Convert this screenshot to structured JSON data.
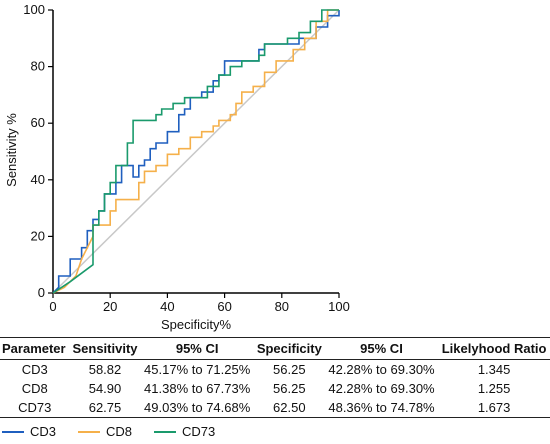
{
  "chart_data": {
    "type": "line",
    "title": "",
    "xlabel": "Specificity%",
    "ylabel": "Sensitivity %",
    "xlim": [
      0,
      100
    ],
    "ylim": [
      0,
      100
    ],
    "xticks": [
      0,
      20,
      40,
      60,
      80,
      100
    ],
    "yticks": [
      0,
      20,
      40,
      60,
      80,
      100
    ],
    "grid": false,
    "legend_placement": "bottom",
    "reference_line": {
      "points": [
        [
          0,
          0
        ],
        [
          100,
          100
        ]
      ],
      "color": "#c8c8c8"
    },
    "series": [
      {
        "name": "CD3",
        "color": "#1f5fbf",
        "points": [
          [
            0,
            0
          ],
          [
            2,
            2
          ],
          [
            2,
            6
          ],
          [
            6,
            6
          ],
          [
            6,
            12
          ],
          [
            10,
            12
          ],
          [
            10,
            16
          ],
          [
            12,
            16
          ],
          [
            12,
            22
          ],
          [
            14,
            22
          ],
          [
            14,
            26
          ],
          [
            16,
            26
          ],
          [
            16,
            29
          ],
          [
            18,
            29
          ],
          [
            18,
            35
          ],
          [
            22,
            35
          ],
          [
            22,
            39
          ],
          [
            24,
            39
          ],
          [
            24,
            45
          ],
          [
            28,
            45
          ],
          [
            28,
            41
          ],
          [
            30,
            41
          ],
          [
            30,
            45
          ],
          [
            32,
            45
          ],
          [
            32,
            47
          ],
          [
            34,
            47
          ],
          [
            34,
            51
          ],
          [
            36,
            51
          ],
          [
            36,
            53
          ],
          [
            40,
            53
          ],
          [
            40,
            57
          ],
          [
            44,
            57
          ],
          [
            44,
            63
          ],
          [
            46,
            63
          ],
          [
            46,
            65
          ],
          [
            48,
            65
          ],
          [
            48,
            69
          ],
          [
            52,
            69
          ],
          [
            52,
            71
          ],
          [
            56,
            71
          ],
          [
            56,
            75
          ],
          [
            58,
            75
          ],
          [
            58,
            77
          ],
          [
            60,
            77
          ],
          [
            60,
            82
          ],
          [
            72,
            82
          ],
          [
            72,
            86
          ],
          [
            74,
            86
          ],
          [
            74,
            88
          ],
          [
            86,
            88
          ],
          [
            86,
            90
          ],
          [
            92,
            90
          ],
          [
            92,
            94
          ],
          [
            96,
            94
          ],
          [
            96,
            98
          ],
          [
            100,
            98
          ],
          [
            100,
            100
          ]
        ]
      },
      {
        "name": "CD8",
        "color": "#f5b04a",
        "points": [
          [
            0,
            0
          ],
          [
            4,
            2
          ],
          [
            8,
            6
          ],
          [
            10,
            12
          ],
          [
            12,
            16
          ],
          [
            14,
            20
          ],
          [
            14,
            24
          ],
          [
            20,
            24
          ],
          [
            20,
            29
          ],
          [
            22,
            29
          ],
          [
            22,
            33
          ],
          [
            30,
            33
          ],
          [
            30,
            39
          ],
          [
            32,
            39
          ],
          [
            32,
            43
          ],
          [
            36,
            43
          ],
          [
            36,
            45
          ],
          [
            40,
            45
          ],
          [
            40,
            49
          ],
          [
            44,
            49
          ],
          [
            44,
            51
          ],
          [
            48,
            51
          ],
          [
            48,
            55
          ],
          [
            52,
            55
          ],
          [
            52,
            57
          ],
          [
            56,
            57
          ],
          [
            56,
            59
          ],
          [
            58,
            59
          ],
          [
            58,
            61
          ],
          [
            62,
            61
          ],
          [
            62,
            63
          ],
          [
            64,
            63
          ],
          [
            64,
            67
          ],
          [
            66,
            67
          ],
          [
            66,
            71
          ],
          [
            70,
            71
          ],
          [
            70,
            73
          ],
          [
            74,
            73
          ],
          [
            74,
            78
          ],
          [
            78,
            78
          ],
          [
            78,
            82
          ],
          [
            84,
            82
          ],
          [
            84,
            86
          ],
          [
            88,
            86
          ],
          [
            88,
            90
          ],
          [
            92,
            90
          ],
          [
            92,
            96
          ],
          [
            96,
            96
          ],
          [
            96,
            100
          ],
          [
            100,
            100
          ]
        ]
      },
      {
        "name": "CD73",
        "color": "#1a9a6c",
        "points": [
          [
            0,
            0
          ],
          [
            6,
            4
          ],
          [
            14,
            10
          ],
          [
            14,
            24
          ],
          [
            16,
            24
          ],
          [
            16,
            29
          ],
          [
            18,
            29
          ],
          [
            18,
            35
          ],
          [
            20,
            35
          ],
          [
            20,
            39
          ],
          [
            22,
            39
          ],
          [
            22,
            45
          ],
          [
            26,
            45
          ],
          [
            26,
            53
          ],
          [
            28,
            53
          ],
          [
            28,
            61
          ],
          [
            36,
            61
          ],
          [
            36,
            63
          ],
          [
            38,
            63
          ],
          [
            38,
            65
          ],
          [
            42,
            65
          ],
          [
            42,
            67
          ],
          [
            46,
            67
          ],
          [
            46,
            69
          ],
          [
            54,
            69
          ],
          [
            54,
            73
          ],
          [
            58,
            73
          ],
          [
            58,
            77
          ],
          [
            62,
            77
          ],
          [
            62,
            80
          ],
          [
            66,
            80
          ],
          [
            66,
            82
          ],
          [
            72,
            82
          ],
          [
            72,
            84
          ],
          [
            74,
            84
          ],
          [
            74,
            88
          ],
          [
            82,
            88
          ],
          [
            82,
            90
          ],
          [
            86,
            90
          ],
          [
            86,
            92
          ],
          [
            90,
            92
          ],
          [
            90,
            96
          ],
          [
            94,
            96
          ],
          [
            94,
            100
          ],
          [
            100,
            100
          ]
        ]
      }
    ]
  },
  "stats_table": {
    "headers": [
      "Parameter",
      "Sensitivity",
      "95% CI",
      "Specificity",
      "95% CI",
      "Likelyhood Ratio"
    ],
    "rows": [
      [
        "CD3",
        "58.82",
        "45.17% to 71.25%",
        "56.25",
        "42.28% to 69.30%",
        "1.345"
      ],
      [
        "CD8",
        "54.90",
        "41.38% to 67.73%",
        "56.25",
        "42.28% to 69.30%",
        "1.255"
      ],
      [
        "CD73",
        "62.75",
        "49.03% to 74.68%",
        "62.50",
        "48.36% to 74.78%",
        "1.673"
      ]
    ]
  }
}
